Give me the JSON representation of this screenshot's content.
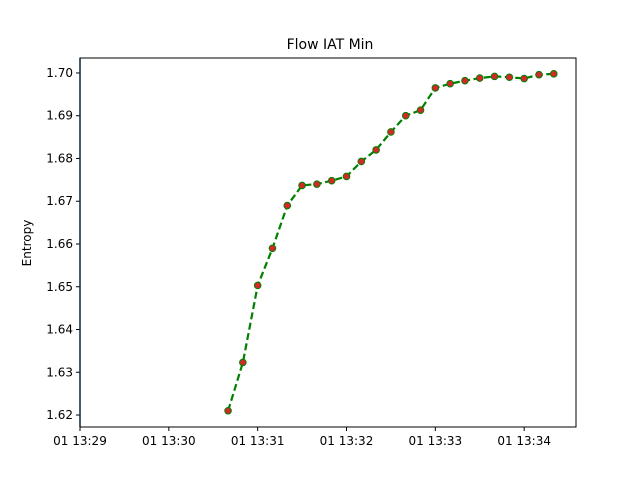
{
  "chart_data": {
    "type": "line",
    "title": "Flow IAT Min",
    "xlabel": "",
    "ylabel": "Entropy",
    "x_ticks": [
      "01 13:29",
      "01 13:30",
      "01 13:31",
      "01 13:32",
      "01 13:33",
      "01 13:34"
    ],
    "y_ticks": [
      "1.62",
      "1.63",
      "1.64",
      "1.65",
      "1.66",
      "1.67",
      "1.68",
      "1.69",
      "1.70"
    ],
    "xlim": [
      "13:29:00",
      "13:34:35"
    ],
    "ylim": [
      1.6172,
      1.7035
    ],
    "grid": false,
    "vertical_line": {
      "x": "13:29:00",
      "color": "#1f77b4"
    },
    "series": [
      {
        "line_color": "#008000",
        "line_style": "dashed",
        "marker_face": "#d62728",
        "marker_edge": "#008000",
        "x": [
          "13:30:40",
          "13:30:50",
          "13:31:00",
          "13:31:10",
          "13:31:20",
          "13:31:30",
          "13:31:40",
          "13:31:50",
          "13:32:00",
          "13:32:10",
          "13:32:20",
          "13:32:30",
          "13:32:40",
          "13:32:50",
          "13:33:00",
          "13:33:10",
          "13:33:20",
          "13:33:30",
          "13:33:40",
          "13:33:50",
          "13:34:00",
          "13:34:10",
          "13:34:20"
        ],
        "y": [
          1.621,
          1.6323,
          1.6503,
          1.659,
          1.669,
          1.6737,
          1.674,
          1.6748,
          1.6758,
          1.6793,
          1.682,
          1.6862,
          1.69,
          1.6913,
          1.6965,
          1.6975,
          1.6982,
          1.6988,
          1.6992,
          1.699,
          1.6987,
          1.6996,
          1.6998
        ]
      }
    ]
  }
}
